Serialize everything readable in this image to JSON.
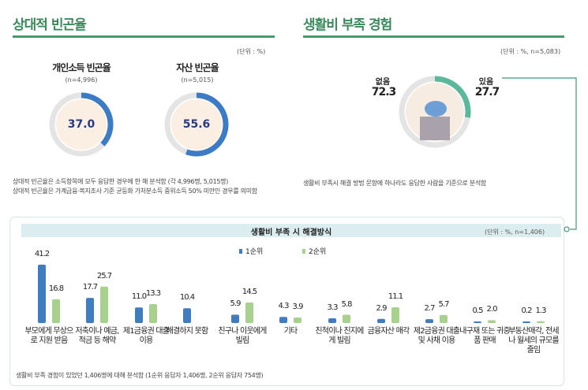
{
  "left": {
    "title": "상대적 빈곤율",
    "unit": "(단위 : %)",
    "donuts": [
      {
        "title": "개인소득 빈곤율",
        "n": "(n=4,996)",
        "value": 37.0,
        "label": "37.0",
        "color": "#3d7cc4"
      },
      {
        "title": "자산 빈곤율",
        "n": "(n=5,015)",
        "value": 55.6,
        "label": "55.6",
        "color": "#3d7cc4"
      }
    ],
    "notes": [
      "상대적 빈곤율은 소득항목에 모두 응답한 경우에 한 해 분석함 (각 4,996명, 5,015명)",
      "상대적 빈곤율은 가계금융·복지조사 기준 균등화 가처분소득 중위소득 50% 미만인 경우를 의미함"
    ]
  },
  "right": {
    "title": "생활비 부족 경험",
    "unit": "(단위 : %, n=5,083)",
    "no_label": "없음",
    "no_value": "72.3",
    "yes_label": "있음",
    "yes_value": "27.7",
    "yes_fraction": 27.7,
    "color": "#5bb89a",
    "note": "생활비 부족시 해결 방법 문항에 하나라도 응답한 사람을 기준으로 분석함"
  },
  "chart_data": {
    "type": "bar",
    "title": "생활비 부족 시 해결방식",
    "unit": "(단위 : %, n=1,406)",
    "categories": [
      "부모에게 무상으로 지원 받음",
      "저축이나 예금, 적금 등 해약",
      "제1금융권 대출 이용",
      "해결하지 못함",
      "친구나 이웃에게 빌림",
      "기타",
      "친척이나 친지에게 빌림",
      "금융자산 매각",
      "제2금융권 대출 및 사채 이용",
      "내구재 또는 귀중품 판매",
      "부동산매각, 전세나 월세의 규모를 줄임"
    ],
    "series": [
      {
        "name": "1순위",
        "color": "#3f7cc0",
        "values": [
          41.2,
          17.7,
          11.0,
          10.4,
          5.9,
          4.3,
          3.3,
          2.9,
          2.7,
          0.5,
          0.2
        ]
      },
      {
        "name": "2순위",
        "color": "#a9d18e",
        "values": [
          16.8,
          25.7,
          13.3,
          null,
          14.5,
          3.9,
          5.8,
          11.1,
          5.7,
          2.0,
          1.3
        ]
      }
    ],
    "legend": "top-center",
    "note": "생활비 부족 경험이 있었던 1,406명에 대해 분석함 (1순위 응답자 1,406명, 2순위 응답자 754명)"
  }
}
